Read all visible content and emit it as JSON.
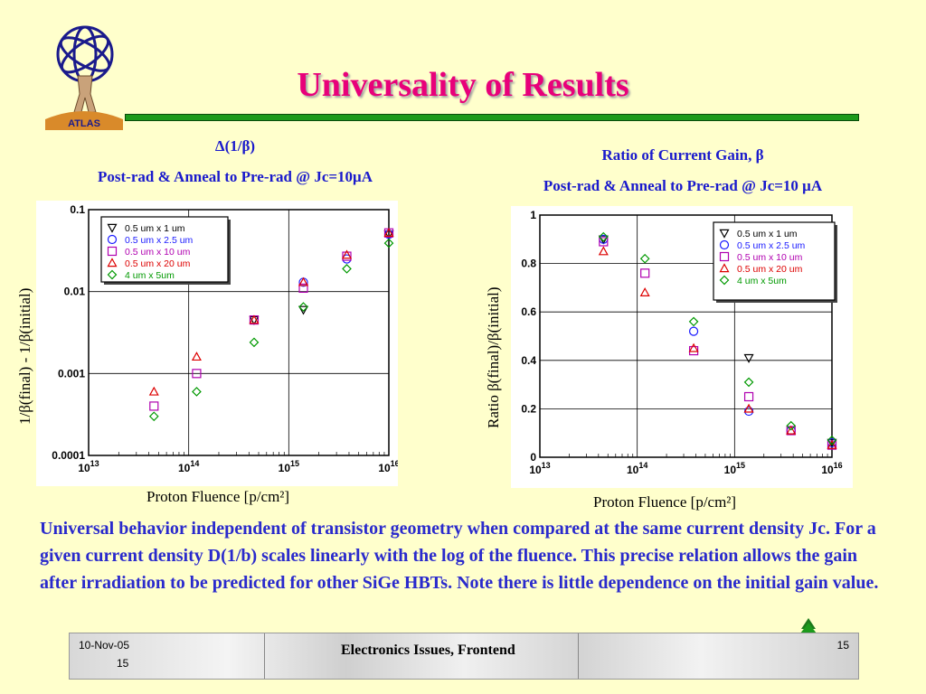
{
  "slide": {
    "title": "Universality of Results",
    "logo_text": "ATLAS",
    "left_caption_line1": "Δ(1/β)",
    "left_caption_line2": "Post-rad & Anneal to Pre-rad @ Jc=10μA",
    "right_caption_line1": "Ratio of Current Gain, β",
    "right_caption_line2": "Post-rad & Anneal to Pre-rad @ Jc=10 μA",
    "left_ylabel": "1/β(final) - 1/β(initial)",
    "right_ylabel": "Ratio β(final)/β(initial)",
    "xlabel": "Proton Fluence [p/cm²]",
    "body": "Universal behavior independent of transistor geometry when compared at the same current density Jc. For a given current density D(1/b) scales linearly with the log of the fluence. This precise relation allows the gain after irradiation to be predicted for other SiGe HBTs. Note there is little dependence on the initial gain value."
  },
  "footer": {
    "date": "10-Nov-05",
    "page_left": "15",
    "center": "Electronics Issues, Frontend",
    "page_right": "15"
  },
  "colors": {
    "title": "#e8007a",
    "caption": "#1a1acc",
    "rule": "#1c9a1c"
  },
  "legend_entries": [
    "0.5 um x 1 um",
    "0.5 um x 2.5 um",
    "0.5 um x 10 um",
    "0.5 um x 20 um",
    "4 um x 5um"
  ],
  "chart_data": [
    {
      "type": "scatter",
      "xscale": "log",
      "yscale": "log",
      "xlim": [
        10000000000000.0,
        1e+16
      ],
      "ylim": [
        0.0001,
        0.1
      ],
      "xticks": [
        "10^13",
        "10^14",
        "10^15",
        "10^16"
      ],
      "yticks": [
        "0.0001",
        "0.001",
        "0.01",
        "0.1"
      ],
      "legend": "top-left",
      "series": [
        {
          "name": "0.5 um x 1 um",
          "marker": "triangle-down",
          "color": "#000000",
          "points": [
            [
              450000000000000.0,
              0.0045
            ],
            [
              1400000000000000.0,
              0.006
            ],
            [
              1e+16,
              0.05
            ]
          ]
        },
        {
          "name": "0.5 um x 2.5 um",
          "marker": "circle",
          "color": "#1a1aff",
          "points": [
            [
              1400000000000000.0,
              0.013
            ],
            [
              3800000000000000.0,
              0.025
            ],
            [
              1e+16,
              0.05
            ]
          ]
        },
        {
          "name": "0.5 um x 10 um",
          "marker": "square",
          "color": "#b000b0",
          "points": [
            [
              45000000000000.0,
              0.0004
            ],
            [
              120000000000000.0,
              0.001
            ],
            [
              450000000000000.0,
              0.0045
            ],
            [
              1400000000000000.0,
              0.011
            ],
            [
              3800000000000000.0,
              0.027
            ],
            [
              1e+16,
              0.052
            ]
          ]
        },
        {
          "name": "0.5 um x 20 um",
          "marker": "triangle-up",
          "color": "#dd0000",
          "points": [
            [
              45000000000000.0,
              0.0006
            ],
            [
              120000000000000.0,
              0.0016
            ],
            [
              450000000000000.0,
              0.0045
            ],
            [
              1400000000000000.0,
              0.013
            ],
            [
              3800000000000000.0,
              0.028
            ],
            [
              1e+16,
              0.052
            ]
          ]
        },
        {
          "name": "4 um x 5um",
          "marker": "diamond",
          "color": "#009900",
          "points": [
            [
              45000000000000.0,
              0.0003
            ],
            [
              120000000000000.0,
              0.0006
            ],
            [
              450000000000000.0,
              0.0024
            ],
            [
              1400000000000000.0,
              0.0065
            ],
            [
              3800000000000000.0,
              0.019
            ],
            [
              1e+16,
              0.039
            ]
          ]
        }
      ]
    },
    {
      "type": "scatter",
      "xscale": "log",
      "yscale": "linear",
      "xlim": [
        10000000000000.0,
        1e+16
      ],
      "ylim": [
        0,
        1
      ],
      "xticks": [
        "10^13",
        "10^14",
        "10^15",
        "10^16"
      ],
      "yticks": [
        "0",
        "0.2",
        "0.4",
        "0.6",
        "0.8",
        "1"
      ],
      "legend": "top-right",
      "series": [
        {
          "name": "0.5 um x 1 um",
          "marker": "triangle-down",
          "color": "#000000",
          "points": [
            [
              45000000000000.0,
              0.9
            ],
            [
              1400000000000000.0,
              0.41
            ],
            [
              1e+16,
              0.06
            ]
          ]
        },
        {
          "name": "0.5 um x 2.5 um",
          "marker": "circle",
          "color": "#1a1aff",
          "points": [
            [
              45000000000000.0,
              0.9
            ],
            [
              380000000000000.0,
              0.52
            ],
            [
              1400000000000000.0,
              0.19
            ],
            [
              3800000000000000.0,
              0.11
            ],
            [
              1e+16,
              0.06
            ]
          ]
        },
        {
          "name": "0.5 um x 10 um",
          "marker": "square",
          "color": "#b000b0",
          "points": [
            [
              45000000000000.0,
              0.89
            ],
            [
              120000000000000.0,
              0.76
            ],
            [
              380000000000000.0,
              0.44
            ],
            [
              1400000000000000.0,
              0.25
            ],
            [
              3800000000000000.0,
              0.11
            ],
            [
              1e+16,
              0.05
            ]
          ]
        },
        {
          "name": "0.5 um x 20 um",
          "marker": "triangle-up",
          "color": "#dd0000",
          "points": [
            [
              45000000000000.0,
              0.85
            ],
            [
              120000000000000.0,
              0.68
            ],
            [
              380000000000000.0,
              0.45
            ],
            [
              1400000000000000.0,
              0.2
            ],
            [
              3800000000000000.0,
              0.11
            ],
            [
              1e+16,
              0.05
            ]
          ]
        },
        {
          "name": "4 um x 5um",
          "marker": "diamond",
          "color": "#009900",
          "points": [
            [
              45000000000000.0,
              0.91
            ],
            [
              120000000000000.0,
              0.82
            ],
            [
              380000000000000.0,
              0.56
            ],
            [
              1400000000000000.0,
              0.31
            ],
            [
              3800000000000000.0,
              0.13
            ],
            [
              1e+16,
              0.07
            ]
          ]
        }
      ]
    }
  ]
}
